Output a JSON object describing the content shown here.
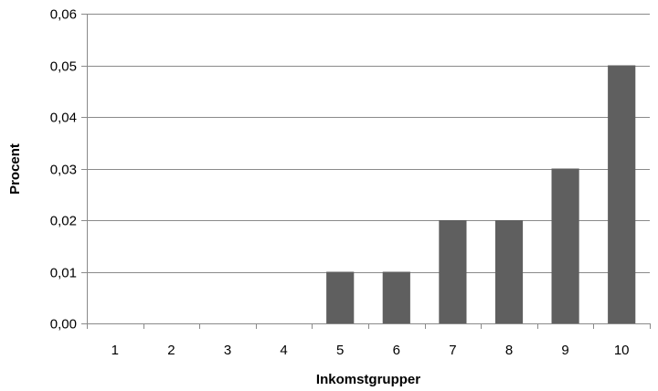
{
  "chart_data": {
    "type": "bar",
    "categories": [
      "1",
      "2",
      "3",
      "4",
      "5",
      "6",
      "7",
      "8",
      "9",
      "10"
    ],
    "values": [
      0,
      0,
      0,
      0,
      0.01,
      0.01,
      0.02,
      0.02,
      0.03,
      0.05
    ],
    "title": "",
    "xlabel": "Inkomstgrupper",
    "ylabel": "Procent",
    "ylim": [
      0,
      0.06
    ],
    "yticks": [
      "0,00",
      "0,01",
      "0,02",
      "0,03",
      "0,04",
      "0,05",
      "0,06"
    ],
    "grid": "horizontal",
    "legend": "none",
    "bar_color": "#5f5f5f"
  }
}
